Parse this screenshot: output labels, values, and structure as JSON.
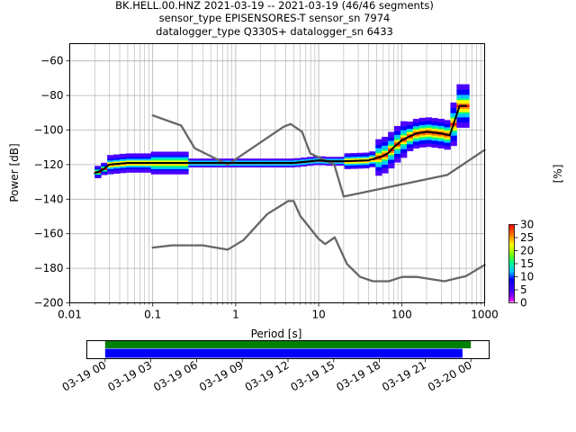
{
  "title": {
    "line1": "BK.HELL.00.HNZ   2021-03-19 -- 2021-03-19  (46/46 segments)",
    "line2": "sensor_type EPISENSORES-T sensor_sn 7974",
    "line3": "datalogger_type Q330S+ datalogger_sn 6433"
  },
  "chart_data": [
    {
      "type": "heatmap",
      "title": "BK.HELL.00.HNZ   2021-03-19 -- 2021-03-19  (46/46 segments)",
      "xlabel": "Period [s]",
      "ylabel": "Power [dB]",
      "xscale": "log",
      "xlim": [
        0.01,
        1000
      ],
      "ylim": [
        -200,
        -50
      ],
      "x_ticks": [
        0.01,
        0.1,
        1,
        10,
        100,
        1000
      ],
      "x_tick_labels": [
        "0.01",
        "0.1",
        "1",
        "10",
        "100",
        "1000"
      ],
      "y_ticks": [
        -200,
        -180,
        -160,
        -140,
        -120,
        -100,
        -80,
        -60
      ],
      "y_tick_labels": [
        "−200",
        "−180",
        "−160",
        "−140",
        "−120",
        "−100",
        "−80",
        "−60"
      ],
      "grid": true,
      "series": [
        {
          "name": "",
          "style": "gray model line (upper)",
          "color": "#666666",
          "x": [
            0.1,
            0.22,
            0.32,
            0.8,
            3.8,
            4.6,
            6.3,
            7.9,
            15.4,
            20,
            354,
            1000
          ],
          "y": [
            -91.5,
            -97.4,
            -110.5,
            -120.0,
            -98.0,
            -96.5,
            -101.0,
            -113.5,
            -120.0,
            -138.5,
            -126.0,
            -111.5
          ]
        },
        {
          "name": "",
          "style": "gray model line (lower)",
          "color": "#666666",
          "x": [
            0.1,
            0.17,
            0.4,
            0.8,
            1.24,
            2.4,
            4.3,
            5.0,
            6.0,
            10,
            12,
            15.6,
            21.9,
            31.6,
            45,
            70,
            101,
            154,
            328,
            600,
            1000
          ],
          "y": [
            -168.0,
            -166.7,
            -166.7,
            -169.2,
            -163.7,
            -148.6,
            -141.1,
            -141.1,
            -149.7,
            -163.0,
            -166.0,
            -162.1,
            -177.5,
            -185.0,
            -187.5,
            -187.5,
            -185.0,
            -185.0,
            -187.5,
            -184.5,
            -178.0
          ]
        },
        {
          "name": "",
          "style": "black mean line",
          "color": "#000000",
          "x": [
            0.02,
            0.025,
            0.03,
            0.05,
            0.1,
            0.2,
            0.5,
            1,
            2,
            3,
            5,
            8,
            10,
            13,
            20,
            40,
            60,
            70,
            80,
            100,
            120,
            150,
            200,
            300,
            380,
            500,
            600
          ],
          "y": [
            -125.0,
            -123.0,
            -120.0,
            -119.0,
            -119.0,
            -119.0,
            -119.0,
            -119.0,
            -119.0,
            -119.0,
            -119.0,
            -118.0,
            -117.5,
            -118.0,
            -118.0,
            -117.5,
            -115.0,
            -113.0,
            -110.0,
            -106.0,
            -104.0,
            -102.0,
            -101.0,
            -102.0,
            -103.0,
            -86.0,
            -86.0
          ]
        }
      ],
      "colorbar": {
        "label": "[%]",
        "range": [
          0,
          30
        ],
        "ticks": [
          "0",
          "5",
          "10",
          "15",
          "20",
          "25",
          "30"
        ],
        "colormap": "pqlx"
      }
    },
    {
      "type": "bar",
      "title": "",
      "subtype": "data coverage timeline",
      "x_tick_labels": [
        "03-19 00",
        "03-19 03",
        "03-19 06",
        "03-19 09",
        "03-19 12",
        "03-19 15",
        "03-19 18",
        "03-19 21",
        "03-20 00"
      ],
      "x_hours": [
        0,
        3,
        6,
        9,
        12,
        15,
        18,
        21,
        24
      ],
      "xlim_hours": [
        -1.2,
        25.2
      ],
      "series": [
        {
          "name": "",
          "color": "#008000",
          "start_hour": 0,
          "end_hour": 24
        },
        {
          "name": "",
          "color": "#0000ff",
          "start_hour": 0,
          "end_hour": 23.45
        }
      ]
    }
  ]
}
